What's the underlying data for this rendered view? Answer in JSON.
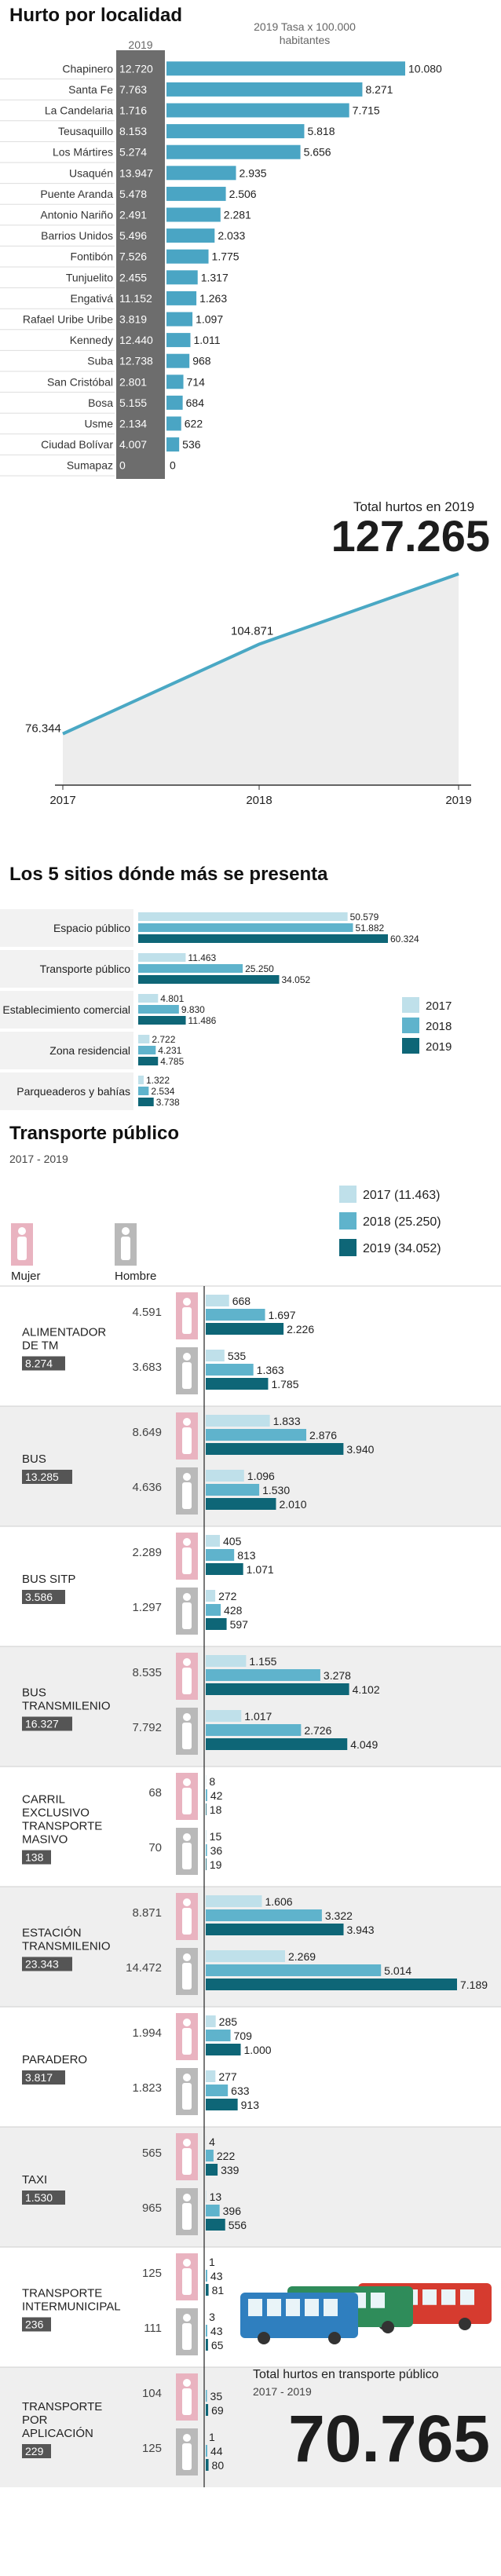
{
  "colors": {
    "c2017": "#bfe0ea",
    "c2018": "#5fb3cc",
    "c2019": "#0e6677",
    "dark_label": "#555555",
    "line": "#4aa8c4",
    "mujer": "#e9b3c0",
    "hombre": "#b9b9b9"
  },
  "section1": {
    "title": "Hurto por localidad",
    "col_year": "2019",
    "col_rate": "2019 Tasa x 100.000 habitantes"
  },
  "section2": {
    "total_label": "Total hurtos en 2019",
    "total_value": "127.265"
  },
  "section3": {
    "title": "Los 5 sitios dónde más se presenta"
  },
  "section4": {
    "title": "Transporte público",
    "subtitle": "2017 - 2019",
    "mujer": "Mujer",
    "hombre": "Hombre",
    "total_label": "Total hurtos en transporte público",
    "total_period": "2017 - 2019",
    "total_value": "70.765",
    "bus_illustration": "bus-icon"
  },
  "chart_data": [
    {
      "type": "bar",
      "title": "Hurto por localidad",
      "categories": [
        "Chapinero",
        "Santa Fe",
        "La Candelaria",
        "Teusaquillo",
        "Los Mártires",
        "Usaquén",
        "Puente Aranda",
        "Antonio Nariño",
        "Barrios Unidos",
        "Fontibón",
        "Tunjuelito",
        "Engativá",
        "Rafael Uribe Uribe",
        "Kennedy",
        "Suba",
        "San Cristóbal",
        "Bosa",
        "Usme",
        "Ciudad Bolívar",
        "Sumapaz"
      ],
      "values_2019": [
        "12.720",
        "7.763",
        "1.716",
        "8.153",
        "5.274",
        "13.947",
        "5.478",
        "2.491",
        "5.496",
        "7.526",
        "2.455",
        "11.152",
        "3.819",
        "12.440",
        "12.738",
        "2.801",
        "5.155",
        "2.134",
        "4.007",
        "0"
      ],
      "series": [
        {
          "name": "2019 Tasa x 100.000 habitantes",
          "values": [
            10080,
            8271,
            7715,
            5818,
            5656,
            2935,
            2506,
            2281,
            2033,
            1775,
            1317,
            1263,
            1097,
            1011,
            968,
            714,
            684,
            622,
            536,
            0
          ],
          "labels": [
            "10.080",
            "8.271",
            "7.715",
            "5.818",
            "5.656",
            "2.935",
            "2.506",
            "2.281",
            "2.033",
            "1.775",
            "1.317",
            "1.263",
            "1.097",
            "1.011",
            "968",
            "714",
            "684",
            "622",
            "536",
            "0"
          ]
        }
      ]
    },
    {
      "type": "area",
      "title": "Total hurtos en 2019",
      "x": [
        "2017",
        "2018",
        "2019"
      ],
      "values": [
        76344,
        104871,
        127265
      ],
      "labels": [
        "76.344",
        "104.871",
        "127.265"
      ]
    },
    {
      "type": "bar",
      "title": "Los 5 sitios dónde más se presenta",
      "categories": [
        "Espacio público",
        "Transporte público",
        "Establecimiento comercial",
        "Zona residencial",
        "Parqueaderos y bahías"
      ],
      "series": [
        {
          "name": "2017",
          "values": [
            50579,
            11463,
            4801,
            2722,
            1322
          ],
          "labels": [
            "50.579",
            "11.463",
            "4.801",
            "2.722",
            "1.322"
          ]
        },
        {
          "name": "2018",
          "values": [
            51882,
            25250,
            9830,
            4231,
            2534
          ],
          "labels": [
            "51.882",
            "25.250",
            "9.830",
            "4.231",
            "2.534"
          ]
        },
        {
          "name": "2019",
          "values": [
            60324,
            34052,
            11486,
            4785,
            3738
          ],
          "labels": [
            "60.324",
            "34.052",
            "11.486",
            "4.785",
            "3.738"
          ]
        }
      ],
      "legend": "right"
    },
    {
      "type": "bar",
      "title": "Transporte público",
      "legend_entries": [
        "2017 (11.463)",
        "2018 (25.250)",
        "2019 (34.052)"
      ],
      "categories": [
        {
          "name": "ALIMENTADOR DE TM",
          "total": "8.274",
          "mujer_total": "4.591",
          "mujer": [
            668,
            1697,
            2226
          ],
          "mujer_labels": [
            "668",
            "1.697",
            "2.226"
          ],
          "hombre_total": "3.683",
          "hombre": [
            535,
            1363,
            1785
          ],
          "hombre_labels": [
            "535",
            "1.363",
            "1.785"
          ]
        },
        {
          "name": "BUS",
          "total": "13.285",
          "mujer_total": "8.649",
          "mujer": [
            1833,
            2876,
            3940
          ],
          "mujer_labels": [
            "1.833",
            "2.876",
            "3.940"
          ],
          "hombre_total": "4.636",
          "hombre": [
            1096,
            1530,
            2010
          ],
          "hombre_labels": [
            "1.096",
            "1.530",
            "2.010"
          ]
        },
        {
          "name": "BUS SITP",
          "total": "3.586",
          "mujer_total": "2.289",
          "mujer": [
            405,
            813,
            1071
          ],
          "mujer_labels": [
            "405",
            "813",
            "1.071"
          ],
          "hombre_total": "1.297",
          "hombre": [
            272,
            428,
            597
          ],
          "hombre_labels": [
            "272",
            "428",
            "597"
          ]
        },
        {
          "name": "BUS TRANSMILENIO",
          "total": "16.327",
          "mujer_total": "8.535",
          "mujer": [
            1155,
            3278,
            4102
          ],
          "mujer_labels": [
            "1.155",
            "3.278",
            "4.102"
          ],
          "hombre_total": "7.792",
          "hombre": [
            1017,
            2726,
            4049
          ],
          "hombre_labels": [
            "1.017",
            "2.726",
            "4.049"
          ]
        },
        {
          "name": "CARRIL EXCLUSIVO TRANSPORTE MASIVO",
          "total": "138",
          "mujer_total": "68",
          "mujer": [
            8,
            42,
            18
          ],
          "mujer_labels": [
            "8",
            "42",
            "18"
          ],
          "hombre_total": "70",
          "hombre": [
            15,
            36,
            19
          ],
          "hombre_labels": [
            "15",
            "36",
            "19"
          ]
        },
        {
          "name": "ESTACIÓN TRANSMILENIO",
          "total": "23.343",
          "mujer_total": "8.871",
          "mujer": [
            1606,
            3322,
            3943
          ],
          "mujer_labels": [
            "1.606",
            "3.322",
            "3.943"
          ],
          "hombre_total": "14.472",
          "hombre": [
            2269,
            5014,
            7189
          ],
          "hombre_labels": [
            "2.269",
            "5.014",
            "7.189"
          ]
        },
        {
          "name": "PARADERO",
          "total": "3.817",
          "mujer_total": "1.994",
          "mujer": [
            285,
            709,
            1000
          ],
          "mujer_labels": [
            "285",
            "709",
            "1.000"
          ],
          "hombre_total": "1.823",
          "hombre": [
            277,
            633,
            913
          ],
          "hombre_labels": [
            "277",
            "633",
            "913"
          ]
        },
        {
          "name": "TAXI",
          "total": "1.530",
          "mujer_total": "565",
          "mujer": [
            4,
            222,
            339
          ],
          "mujer_labels": [
            "4",
            "222",
            "339"
          ],
          "hombre_total": "965",
          "hombre": [
            13,
            396,
            556
          ],
          "hombre_labels": [
            "13",
            "396",
            "556"
          ]
        },
        {
          "name": "TRANSPORTE INTERMUNICIPAL",
          "total": "236",
          "mujer_total": "125",
          "mujer": [
            1,
            43,
            81
          ],
          "mujer_labels": [
            "1",
            "43",
            "81"
          ],
          "hombre_total": "111",
          "hombre": [
            3,
            43,
            65
          ],
          "hombre_labels": [
            "3",
            "43",
            "65"
          ]
        },
        {
          "name": "TRANSPORTE POR APLICACIÓN",
          "total": "229",
          "mujer_total": "104",
          "mujer": [
            0,
            35,
            69
          ],
          "mujer_labels": [
            "",
            "35",
            "69"
          ],
          "hombre_total": "125",
          "hombre": [
            1,
            44,
            80
          ],
          "hombre_labels": [
            "1",
            "44",
            "80"
          ]
        }
      ]
    }
  ]
}
